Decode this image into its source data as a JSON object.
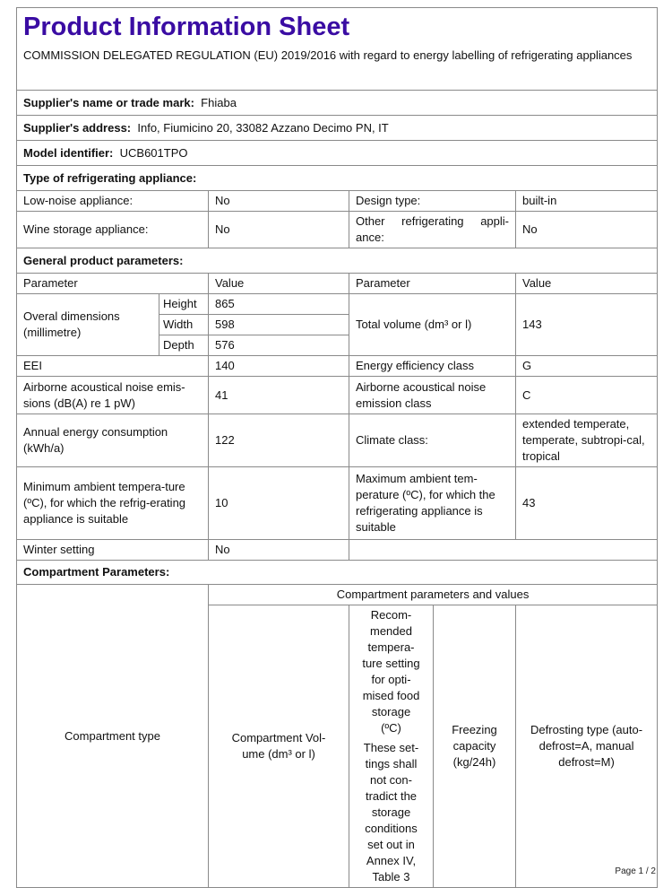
{
  "title": "Product Information Sheet",
  "regulation": "COMMISSION DELEGATED REGULATION (EU) 2019/2016 with regard to energy labelling of refrigerating appliances",
  "supplier_name": {
    "label": "Supplier's name or trade mark:",
    "value": "Fhiaba"
  },
  "supplier_address": {
    "label": "Supplier's address:",
    "value": "Info, Fiumicino 20, 33082 Azzano Decimo PN, IT"
  },
  "model_identifier": {
    "label": "Model identifier:",
    "value": "UCB601TPO"
  },
  "type_section": {
    "heading": "Type of refrigerating appliance:",
    "low_noise": {
      "label": "Low-noise appliance:",
      "value": "No"
    },
    "design_type": {
      "label": "Design type:",
      "value": "built-in"
    },
    "wine_storage": {
      "label": "Wine storage appliance:",
      "value": "No"
    },
    "other": {
      "label": "Other refrigerating appli-ance:",
      "value": "No"
    }
  },
  "general": {
    "heading": "General product parameters:",
    "col_parameter": "Parameter",
    "col_value": "Value",
    "dimensions_label": "Overal dimensions (millimetre)",
    "height": {
      "label": "Height",
      "value": "865"
    },
    "width": {
      "label": "Width",
      "value": "598"
    },
    "depth": {
      "label": "Depth",
      "value": "576"
    },
    "total_volume": {
      "label": "Total volume (dm³ or l)",
      "value": "143"
    },
    "eei": {
      "label": "EEI",
      "value": "140"
    },
    "energy_class": {
      "label": "Energy efficiency class",
      "value": "G"
    },
    "noise": {
      "label": "Airborne acoustical noise emis-sions (dB(A) re 1 pW)",
      "value": "41"
    },
    "noise_class": {
      "label": "Airborne acoustical noise emission class",
      "value": "C"
    },
    "annual_energy": {
      "label": "Annual energy consumption (kWh/a)",
      "value": "122"
    },
    "climate_class": {
      "label": "Climate class:",
      "value": "extended temperate, temperate, subtropi-cal, tropical"
    },
    "min_ambient": {
      "label": "Minimum ambient tempera-ture (ºC), for which the refrig-erating appliance is suitable",
      "value": "10"
    },
    "max_ambient": {
      "label": "Maximum ambient tem-perature (ºC), for which the refrigerating appliance is suitable",
      "value": "43"
    },
    "winter": {
      "label": "Winter setting",
      "value": "No"
    }
  },
  "compartment": {
    "heading": "Compartment Parameters:",
    "group_header": "Compartment parameters and values",
    "type": "Compartment type",
    "volume": "Compartment Vol-ume (dm³ or l)",
    "recommended": "Recom-mended tempera-ture setting for opti-mised food storage (ºC)",
    "recommended_note": "These set-tings shall not con-tradict the storage conditions set out in Annex IV, Table 3",
    "freezing": "Freezing capacity (kg/24h)",
    "defrosting": "Defrosting type (auto-defrost=A, manual defrost=M)"
  },
  "footer": "Page 1 / 2",
  "colors": {
    "title": "#3a0ca3",
    "border": "#8a8a8a"
  }
}
